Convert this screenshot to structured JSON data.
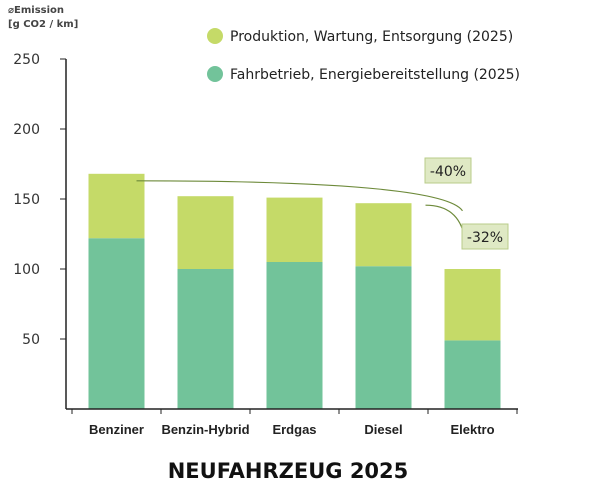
{
  "chart_data": {
    "type": "bar",
    "stacked": true,
    "title": "NEUFAHRZEUG 2025",
    "ylabel": [
      "⌀Emission",
      "[g CO2 / km]"
    ],
    "xlabel": "",
    "categories": [
      "Benziner",
      "Benzin-Hybrid",
      "Erdgas",
      "Diesel",
      "Elektro"
    ],
    "series": [
      {
        "name": "Fahrbetrieb, Energiebereitstellung (2025)",
        "color": "#72c39a",
        "values": [
          122,
          100,
          105,
          102,
          49
        ]
      },
      {
        "name": "Produktion, Wartung, Entsorgung (2025)",
        "color": "#c5da68",
        "values": [
          46,
          52,
          46,
          45,
          51
        ]
      }
    ],
    "legend_order": [
      1,
      0
    ],
    "legend_position": "top-right",
    "ylim": [
      0,
      250
    ],
    "yticks": [
      50,
      100,
      150,
      200,
      250
    ],
    "grid": false,
    "annotations": [
      {
        "text": "-40%",
        "from_category": "Benziner",
        "to_category": "Elektro"
      },
      {
        "text": "-32%",
        "from_category": "Diesel",
        "to_category": "Elektro"
      }
    ]
  }
}
